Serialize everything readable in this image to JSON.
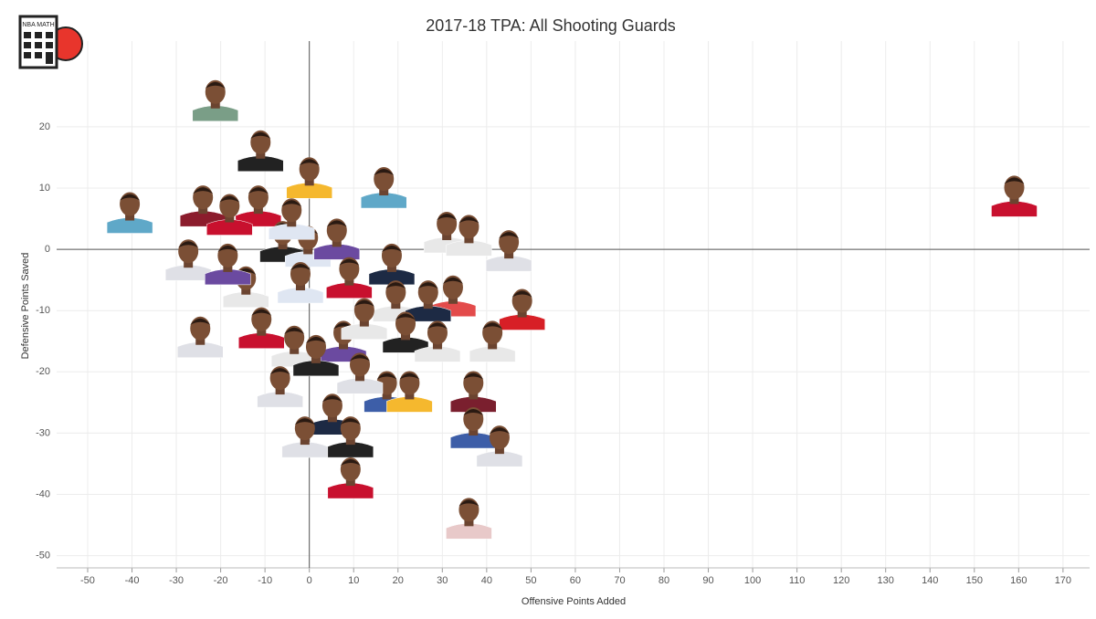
{
  "logo": "NBA MATH",
  "chart_data": {
    "type": "scatter",
    "title": "2017-18 TPA: All Shooting Guards",
    "x_label": "Offensive Points Added",
    "y_label": "Defensive Points Saved",
    "xlim": [
      -57,
      176
    ],
    "ylim": [
      -52,
      34
    ],
    "xticks": [
      -50,
      -40,
      -30,
      -20,
      -10,
      0,
      10,
      20,
      30,
      40,
      50,
      60,
      70,
      80,
      90,
      100,
      110,
      120,
      130,
      140,
      150,
      160,
      170
    ],
    "yticks": [
      -50,
      -40,
      -30,
      -20,
      -10,
      0,
      10,
      20
    ],
    "grid": true,
    "series": [
      {
        "x": [
          -21.2,
          -11,
          159,
          -40.5,
          0,
          16.8,
          -24,
          -11.5,
          -18,
          31,
          36,
          45,
          -27.3,
          -6,
          -0.3,
          6.2,
          18.6,
          9,
          -14.3,
          -2,
          32.4,
          48,
          19.5,
          26.8,
          -24.6,
          -10.8,
          41.3,
          21.7,
          28.9,
          7.7,
          12.4,
          -3.4,
          1.5,
          -6.6,
          17.5,
          22.6,
          37,
          5.2,
          -1,
          9.3,
          37,
          42.9,
          9.3,
          36,
          -18.4,
          -4,
          11.4
        ],
        "values": [
          24.2,
          16,
          8.6,
          5.9,
          11.6,
          10,
          7,
          7,
          5.6,
          2.7,
          2.2,
          -0.3,
          -1.8,
          1.2,
          0.4,
          1.6,
          -2.5,
          -4.7,
          -6.2,
          -5.5,
          -7.7,
          -9.9,
          -8.5,
          -8.5,
          -14.4,
          -12.9,
          -15.1,
          -13.6,
          -15.1,
          -15.1,
          -11.4,
          -15.9,
          -17.4,
          -22.5,
          -23.3,
          -23.3,
          -23.3,
          -27,
          -30.7,
          -30.7,
          -29.2,
          -32.2,
          -37.4,
          -44,
          -2.5,
          4.9,
          -20.3
        ],
        "colors": [
          "#7a9e87",
          "#222222",
          "#c8102e",
          "#5fa8c8",
          "#f5b82e",
          "#5fa8c8",
          "#8b1c2c",
          "#c8102e",
          "#c8102e",
          "#e8e8e8",
          "#e8e8e8",
          "#dfe0e6",
          "#dfe0e6",
          "#222222",
          "#dfe6f2",
          "#6b4aa0",
          "#1d2a44",
          "#c8102e",
          "#e8e8e8",
          "#dfe6f2",
          "#e34b4b",
          "#d71f26",
          "#e8e8e8",
          "#1d2a44",
          "#dfe0e6",
          "#c8102e",
          "#e8e8e8",
          "#222222",
          "#e8e8e8",
          "#6b4aa0",
          "#e8e8e8",
          "#e8e8e8",
          "#222222",
          "#dfe0e6",
          "#3d5ea8",
          "#f5b82e",
          "#7a1f2e",
          "#1d2a44",
          "#dfe0e6",
          "#222222",
          "#3d5ea8",
          "#dfe0e6",
          "#c8102e",
          "#e8c9c9",
          "#6b4aa0",
          "#dfe6f2",
          "#dfe0e6"
        ]
      }
    ]
  }
}
